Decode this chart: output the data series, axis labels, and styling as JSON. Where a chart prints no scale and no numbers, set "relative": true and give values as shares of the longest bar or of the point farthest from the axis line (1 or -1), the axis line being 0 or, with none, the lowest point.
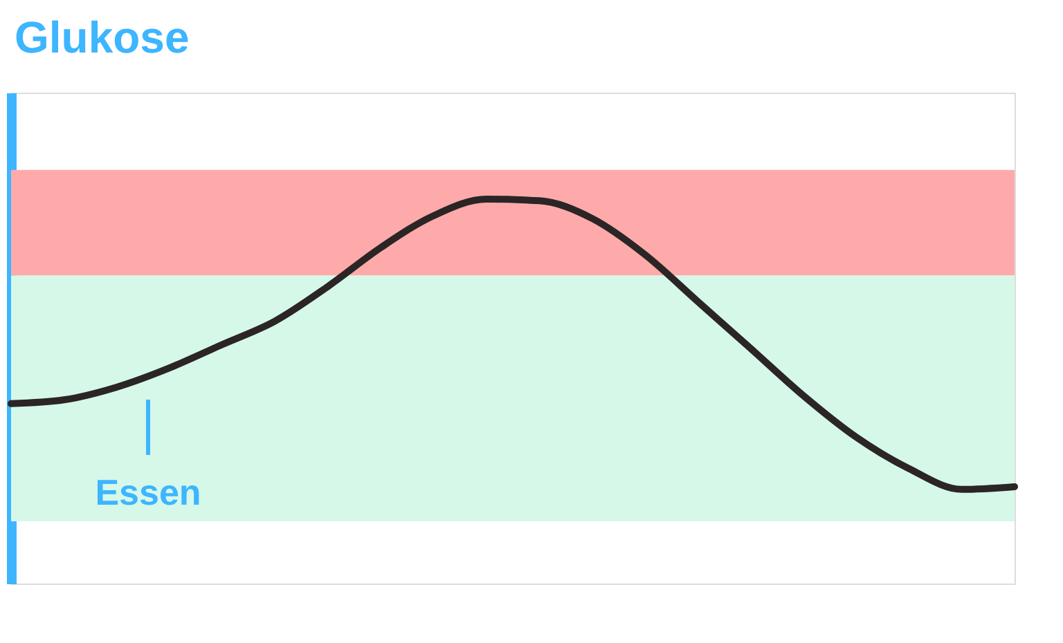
{
  "chart_data": {
    "type": "line",
    "relative": true,
    "ylabel": "Glukose",
    "categories": [
      null,
      null,
      null,
      null,
      null,
      null,
      null,
      null,
      null,
      null,
      null,
      null,
      null,
      null,
      null,
      null,
      null,
      null,
      null,
      null
    ],
    "series": [
      {
        "color": "#2b2526",
        "values": [
          0.468,
          0.478,
          0.511,
          0.561,
          0.622,
          0.683,
          0.773,
          0.874,
          0.957,
          1.0,
          0.996,
          0.95,
          0.856,
          0.734,
          0.612,
          0.489,
          0.381,
          0.299,
          0.245,
          0.252
        ]
      }
    ],
    "bands": [
      {
        "axis": "y",
        "from": 0.162,
        "to": 0.802,
        "color": "#d5f8e9"
      },
      {
        "axis": "y",
        "from": 0.802,
        "to": 1.076,
        "color": "#ffaaaa"
      }
    ],
    "annotations": [
      "Essen"
    ],
    "marker": "none",
    "line_style": "solid",
    "grid": false
  }
}
